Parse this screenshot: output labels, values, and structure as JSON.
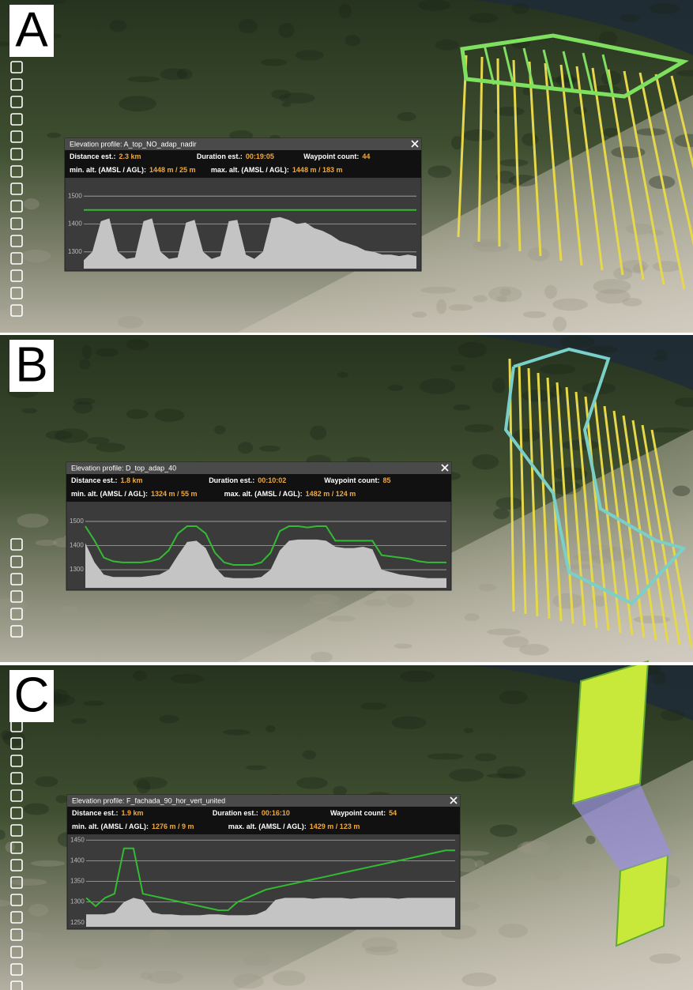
{
  "panels": [
    {
      "label": "A",
      "profile": {
        "title": "Elevation profile: A_top_NO_adap_nadir",
        "distance_label": "Distance est.:",
        "distance": "2.3 km",
        "duration_label": "Duration est.:",
        "duration": "00:19:05",
        "waypoints_label": "Waypoint count:",
        "waypoints": "44",
        "min_label": "min. alt. (AMSL / AGL):",
        "min": "1448 m / 25 m",
        "max_label": "max. alt. (AMSL / AGL):",
        "max": "1448 m / 183 m",
        "chart": {
          "ylim": [
            1240,
            1560
          ],
          "yticks": [
            1300,
            1400,
            1500
          ],
          "grid": true,
          "series": [
            {
              "type": "area",
              "color": "#c4c4c4",
              "values": [
                1270,
                1300,
                1410,
                1420,
                1300,
                1275,
                1280,
                1410,
                1420,
                1300,
                1275,
                1280,
                1405,
                1415,
                1300,
                1275,
                1285,
                1410,
                1415,
                1290,
                1275,
                1300,
                1420,
                1425,
                1415,
                1400,
                1405,
                1385,
                1375,
                1360,
                1340,
                1330,
                1320,
                1305,
                1300,
                1290,
                1290,
                1285,
                1290,
                1285
              ]
            },
            {
              "type": "line",
              "color": "#33bb33",
              "values": [
                1450,
                1450,
                1450,
                1450,
                1450,
                1450,
                1450,
                1450,
                1450,
                1450,
                1450,
                1450,
                1450,
                1450,
                1450,
                1450,
                1450,
                1450,
                1450,
                1450,
                1450,
                1450,
                1450,
                1450,
                1450,
                1450,
                1450,
                1450,
                1450,
                1450,
                1450,
                1450,
                1450,
                1450,
                1450,
                1450,
                1450,
                1450,
                1450,
                1450
              ]
            }
          ]
        }
      }
    },
    {
      "label": "B",
      "profile": {
        "title": "Elevation profile: D_top_adap_40",
        "distance_label": "Distance est.:",
        "distance": "1.8 km",
        "duration_label": "Duration est.:",
        "duration": "00:10:02",
        "waypoints_label": "Waypoint count:",
        "waypoints": "85",
        "min_label": "min. alt. (AMSL / AGL):",
        "min": "1324 m / 55 m",
        "max_label": "max. alt. (AMSL / AGL):",
        "max": "1482 m / 124 m",
        "chart": {
          "ylim": [
            1225,
            1575
          ],
          "yticks": [
            1300,
            1400,
            1500
          ],
          "grid": true,
          "series": [
            {
              "type": "area",
              "color": "#c4c4c4",
              "values": [
                1410,
                1330,
                1280,
                1270,
                1270,
                1270,
                1270,
                1275,
                1280,
                1300,
                1360,
                1415,
                1420,
                1390,
                1310,
                1270,
                1265,
                1265,
                1265,
                1270,
                1300,
                1380,
                1420,
                1425,
                1425,
                1425,
                1420,
                1395,
                1390,
                1390,
                1395,
                1385,
                1300,
                1290,
                1280,
                1275,
                1270,
                1265,
                1265,
                1265
              ]
            },
            {
              "type": "line",
              "color": "#33bb33",
              "values": [
                1480,
                1420,
                1350,
                1335,
                1330,
                1330,
                1330,
                1335,
                1345,
                1380,
                1450,
                1480,
                1480,
                1450,
                1370,
                1330,
                1320,
                1320,
                1320,
                1330,
                1370,
                1460,
                1480,
                1480,
                1475,
                1480,
                1480,
                1420,
                1420,
                1420,
                1420,
                1420,
                1360,
                1355,
                1350,
                1345,
                1335,
                1330,
                1330,
                1330
              ]
            }
          ]
        }
      }
    },
    {
      "label": "C",
      "profile": {
        "title": "Elevation profile: F_fachada_90_hor_vert_united",
        "distance_label": "Distance est.:",
        "distance": "1.9 km",
        "duration_label": "Duration est.:",
        "duration": "00:16:10",
        "waypoints_label": "Waypoint count:",
        "waypoints": "54",
        "min_label": "min. alt. (AMSL / AGL):",
        "min": "1276 m / 9 m",
        "max_label": "max. alt. (AMSL / AGL):",
        "max": "1429 m / 123 m",
        "chart": {
          "ylim": [
            1240,
            1460
          ],
          "yticks": [
            1250,
            1300,
            1350,
            1400,
            1450
          ],
          "grid": true,
          "series": [
            {
              "type": "area",
              "color": "#c4c4c4",
              "values": [
                1270,
                1270,
                1270,
                1275,
                1300,
                1310,
                1305,
                1275,
                1270,
                1270,
                1268,
                1268,
                1268,
                1270,
                1270,
                1268,
                1268,
                1268,
                1270,
                1280,
                1305,
                1310,
                1310,
                1310,
                1308,
                1310,
                1310,
                1310,
                1308,
                1310,
                1310,
                1310,
                1310,
                1308,
                1310,
                1310,
                1310,
                1310,
                1310,
                1310
              ]
            },
            {
              "type": "line",
              "color": "#33bb33",
              "values": [
                1310,
                1290,
                1310,
                1320,
                1430,
                1430,
                1320,
                1315,
                1310,
                1305,
                1300,
                1295,
                1290,
                1285,
                1280,
                1280,
                1300,
                1310,
                1320,
                1330,
                1335,
                1340,
                1345,
                1350,
                1355,
                1360,
                1365,
                1370,
                1375,
                1380,
                1385,
                1390,
                1395,
                1400,
                1405,
                1410,
                1415,
                1420,
                1425,
                1425
              ]
            }
          ]
        }
      }
    }
  ]
}
